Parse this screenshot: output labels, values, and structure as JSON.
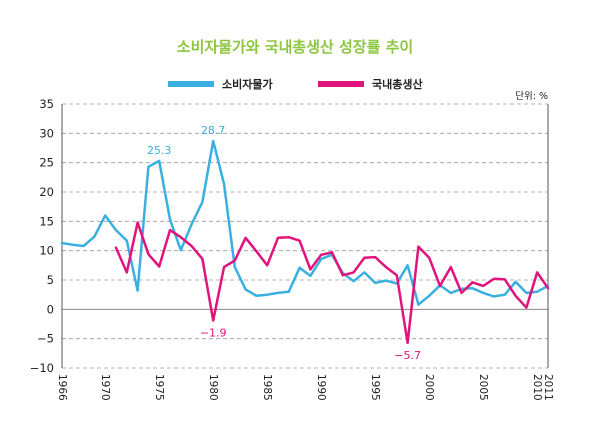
{
  "chart_data": {
    "type": "line",
    "title": "소비자물가와 국내총생산 성장률 추이",
    "unit_label": "단위: %",
    "ylim": [
      -10,
      35
    ],
    "yticks": [
      -10,
      -5,
      0,
      5,
      10,
      15,
      20,
      25,
      30,
      35
    ],
    "xlim": [
      1966,
      2011
    ],
    "xticks": [
      1966,
      1970,
      1975,
      1980,
      1985,
      1990,
      1995,
      2000,
      2005,
      2010,
      2011
    ],
    "grid": "horizontal dashed",
    "legend_position": "top",
    "series": [
      {
        "name": "소비자물가",
        "color": "#3ab0e0",
        "points": [
          [
            1966,
            11.3
          ],
          [
            1967,
            11.0
          ],
          [
            1968,
            10.8
          ],
          [
            1969,
            12.4
          ],
          [
            1970,
            16.0
          ],
          [
            1971,
            13.5
          ],
          [
            1972,
            11.7
          ],
          [
            1973,
            3.2
          ],
          [
            1974,
            24.3
          ],
          [
            1975,
            25.3
          ],
          [
            1976,
            15.3
          ],
          [
            1977,
            10.1
          ],
          [
            1978,
            14.5
          ],
          [
            1979,
            18.3
          ],
          [
            1980,
            28.7
          ],
          [
            1981,
            21.4
          ],
          [
            1982,
            7.2
          ],
          [
            1983,
            3.4
          ],
          [
            1984,
            2.3
          ],
          [
            1985,
            2.5
          ],
          [
            1986,
            2.8
          ],
          [
            1987,
            3.0
          ],
          [
            1988,
            7.1
          ],
          [
            1989,
            5.7
          ],
          [
            1990,
            8.6
          ],
          [
            1991,
            9.3
          ],
          [
            1992,
            6.2
          ],
          [
            1993,
            4.8
          ],
          [
            1994,
            6.3
          ],
          [
            1995,
            4.5
          ],
          [
            1996,
            4.9
          ],
          [
            1997,
            4.4
          ],
          [
            1998,
            7.5
          ],
          [
            1999,
            0.8
          ],
          [
            2000,
            2.3
          ],
          [
            2001,
            4.1
          ],
          [
            2002,
            2.8
          ],
          [
            2003,
            3.5
          ],
          [
            2004,
            3.6
          ],
          [
            2005,
            2.8
          ],
          [
            2006,
            2.2
          ],
          [
            2007,
            2.5
          ],
          [
            2008,
            4.7
          ],
          [
            2009,
            2.8
          ],
          [
            2010,
            3.0
          ],
          [
            2011,
            4.0
          ]
        ]
      },
      {
        "name": "국내총생산",
        "color": "#e0147c",
        "points": [
          [
            1971,
            10.5
          ],
          [
            1972,
            6.3
          ],
          [
            1973,
            14.8
          ],
          [
            1974,
            9.4
          ],
          [
            1975,
            7.3
          ],
          [
            1976,
            13.5
          ],
          [
            1977,
            12.3
          ],
          [
            1978,
            10.8
          ],
          [
            1979,
            8.6
          ],
          [
            1980,
            -1.9
          ],
          [
            1981,
            7.2
          ],
          [
            1982,
            8.3
          ],
          [
            1983,
            12.2
          ],
          [
            1984,
            9.9
          ],
          [
            1985,
            7.5
          ],
          [
            1986,
            12.2
          ],
          [
            1987,
            12.3
          ],
          [
            1988,
            11.7
          ],
          [
            1989,
            6.8
          ],
          [
            1990,
            9.3
          ],
          [
            1991,
            9.7
          ],
          [
            1992,
            5.8
          ],
          [
            1993,
            6.3
          ],
          [
            1994,
            8.8
          ],
          [
            1995,
            8.9
          ],
          [
            1996,
            7.2
          ],
          [
            1997,
            5.8
          ],
          [
            1998,
            -5.7
          ],
          [
            1999,
            10.7
          ],
          [
            2000,
            8.8
          ],
          [
            2001,
            4.0
          ],
          [
            2002,
            7.2
          ],
          [
            2003,
            2.8
          ],
          [
            2004,
            4.6
          ],
          [
            2005,
            4.0
          ],
          [
            2006,
            5.2
          ],
          [
            2007,
            5.1
          ],
          [
            2008,
            2.3
          ],
          [
            2009,
            0.3
          ],
          [
            2010,
            6.3
          ],
          [
            2011,
            3.6
          ]
        ]
      }
    ],
    "annotations": [
      {
        "text": "25.3",
        "x": 1975,
        "y": 25.3,
        "color": "#3ab0e0"
      },
      {
        "text": "28.7",
        "x": 1980,
        "y": 28.7,
        "color": "#3ab0e0"
      },
      {
        "text": "−1.9",
        "x": 1980,
        "y": -1.9,
        "color": "#e0147c"
      },
      {
        "text": "−5.7",
        "x": 1998,
        "y": -5.7,
        "color": "#e0147c"
      }
    ]
  }
}
